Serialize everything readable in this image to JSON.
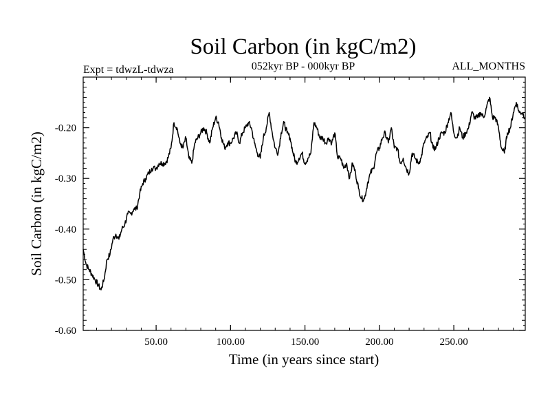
{
  "chart_data": {
    "type": "line",
    "title": "Soil Carbon (in kgC/m2)",
    "subtitle_left": "Expt = tdwzL-tdwza",
    "subtitle_center": "052kyr BP - 000kyr BP",
    "subtitle_right": "ALL_MONTHS",
    "xlabel": "Time (in years since start)",
    "ylabel": "Soil Carbon (in kgC/m2)",
    "xlim": [
      1,
      298
    ],
    "ylim": [
      -0.6,
      -0.1
    ],
    "xticks": [
      50,
      100,
      150,
      200,
      250
    ],
    "xtick_labels": [
      "50.00",
      "100.00",
      "150.00",
      "200.00",
      "250.00"
    ],
    "yticks": [
      -0.6,
      -0.5,
      -0.4,
      -0.3,
      -0.2
    ],
    "ytick_labels": [
      "-0.60",
      "-0.50",
      "-0.40",
      "-0.30",
      "-0.20"
    ],
    "grid": false,
    "series": [
      {
        "name": "Soil Carbon",
        "color": "#000000",
        "x": [
          1,
          3,
          5,
          7,
          9,
          11,
          13,
          15,
          17,
          19,
          21,
          23,
          25,
          27,
          29,
          31,
          33,
          35,
          37,
          39,
          41,
          43,
          45,
          47,
          50,
          52,
          54,
          56,
          58,
          60,
          62,
          64,
          66,
          68,
          70,
          72,
          74,
          76,
          78,
          80,
          82,
          84,
          86,
          88,
          90,
          92,
          94,
          96,
          98,
          100,
          102,
          104,
          106,
          108,
          110,
          112,
          114,
          116,
          118,
          120,
          122,
          124,
          126,
          128,
          130,
          132,
          134,
          136,
          138,
          140,
          142,
          144,
          146,
          148,
          150,
          152,
          154,
          156,
          158,
          160,
          162,
          164,
          166,
          168,
          170,
          172,
          174,
          176,
          178,
          180,
          182,
          184,
          186,
          188,
          190,
          192,
          194,
          196,
          198,
          200,
          202,
          204,
          206,
          208,
          210,
          212,
          214,
          216,
          218,
          220,
          222,
          224,
          226,
          228,
          230,
          232,
          234,
          236,
          238,
          240,
          242,
          244,
          246,
          248,
          250,
          252,
          254,
          256,
          258,
          260,
          262,
          264,
          266,
          268,
          270,
          272,
          274,
          276,
          278,
          280,
          282,
          284,
          286,
          288,
          290,
          292,
          294,
          296,
          298
        ],
        "values": [
          -0.44,
          -0.47,
          -0.48,
          -0.49,
          -0.5,
          -0.51,
          -0.52,
          -0.5,
          -0.46,
          -0.45,
          -0.42,
          -0.41,
          -0.42,
          -0.4,
          -0.39,
          -0.37,
          -0.37,
          -0.36,
          -0.36,
          -0.33,
          -0.31,
          -0.3,
          -0.29,
          -0.28,
          -0.28,
          -0.27,
          -0.27,
          -0.27,
          -0.26,
          -0.24,
          -0.19,
          -0.2,
          -0.23,
          -0.24,
          -0.22,
          -0.26,
          -0.27,
          -0.23,
          -0.22,
          -0.21,
          -0.2,
          -0.21,
          -0.23,
          -0.2,
          -0.18,
          -0.19,
          -0.22,
          -0.24,
          -0.23,
          -0.23,
          -0.22,
          -0.21,
          -0.23,
          -0.21,
          -0.2,
          -0.19,
          -0.2,
          -0.23,
          -0.25,
          -0.26,
          -0.22,
          -0.2,
          -0.17,
          -0.21,
          -0.24,
          -0.25,
          -0.21,
          -0.19,
          -0.21,
          -0.22,
          -0.25,
          -0.27,
          -0.26,
          -0.25,
          -0.27,
          -0.26,
          -0.25,
          -0.19,
          -0.2,
          -0.22,
          -0.22,
          -0.23,
          -0.22,
          -0.23,
          -0.21,
          -0.26,
          -0.26,
          -0.28,
          -0.27,
          -0.3,
          -0.27,
          -0.29,
          -0.32,
          -0.34,
          -0.34,
          -0.31,
          -0.29,
          -0.28,
          -0.25,
          -0.24,
          -0.22,
          -0.21,
          -0.23,
          -0.2,
          -0.24,
          -0.24,
          -0.27,
          -0.26,
          -0.28,
          -0.29,
          -0.25,
          -0.26,
          -0.27,
          -0.26,
          -0.23,
          -0.22,
          -0.21,
          -0.24,
          -0.24,
          -0.22,
          -0.21,
          -0.21,
          -0.19,
          -0.17,
          -0.21,
          -0.22,
          -0.2,
          -0.22,
          -0.21,
          -0.2,
          -0.17,
          -0.18,
          -0.18,
          -0.17,
          -0.18,
          -0.16,
          -0.14,
          -0.18,
          -0.18,
          -0.2,
          -0.24,
          -0.25,
          -0.21,
          -0.2,
          -0.17,
          -0.15,
          -0.17,
          -0.17,
          -0.18
        ]
      }
    ]
  }
}
